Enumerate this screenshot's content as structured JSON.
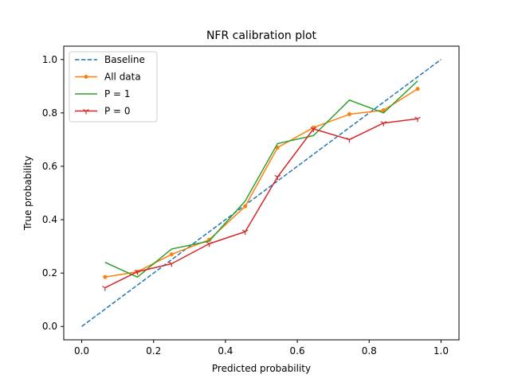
{
  "chart_data": {
    "type": "line",
    "title": "NFR calibration plot",
    "xlabel": "Predicted probability",
    "ylabel": "True probability",
    "xlim": [
      -0.05,
      1.05
    ],
    "ylim": [
      -0.05,
      1.05
    ],
    "xticks": [
      "0.0",
      "0.2",
      "0.4",
      "0.6",
      "0.8",
      "1.0"
    ],
    "yticks": [
      "0.0",
      "0.2",
      "0.4",
      "0.6",
      "0.8",
      "1.0"
    ],
    "grid": false,
    "legend_position": "top-left",
    "series": [
      {
        "name": "Baseline",
        "color": "#1f77b4",
        "style": "dashed",
        "marker": "none",
        "x": [
          0.0,
          1.0
        ],
        "y": [
          0.0,
          1.0
        ]
      },
      {
        "name": "All data",
        "color": "#ff7f0e",
        "style": "solid",
        "marker": "dot",
        "x": [
          0.065,
          0.155,
          0.25,
          0.355,
          0.455,
          0.545,
          0.645,
          0.745,
          0.84,
          0.935
        ],
        "y": [
          0.185,
          0.205,
          0.27,
          0.325,
          0.45,
          0.67,
          0.745,
          0.795,
          0.81,
          0.89
        ]
      },
      {
        "name": "P = 1",
        "color": "#2ca02c",
        "style": "solid",
        "marker": "none",
        "x": [
          0.065,
          0.155,
          0.25,
          0.355,
          0.455,
          0.545,
          0.645,
          0.745,
          0.84,
          0.935
        ],
        "y": [
          0.24,
          0.185,
          0.29,
          0.32,
          0.47,
          0.685,
          0.715,
          0.848,
          0.8,
          0.92
        ]
      },
      {
        "name": "P = 0",
        "color": "#d62728",
        "style": "solid",
        "marker": "tri",
        "x": [
          0.065,
          0.155,
          0.25,
          0.355,
          0.455,
          0.545,
          0.645,
          0.745,
          0.84,
          0.935
        ],
        "y": [
          0.145,
          0.205,
          0.235,
          0.31,
          0.355,
          0.56,
          0.74,
          0.7,
          0.762,
          0.778
        ]
      }
    ]
  }
}
